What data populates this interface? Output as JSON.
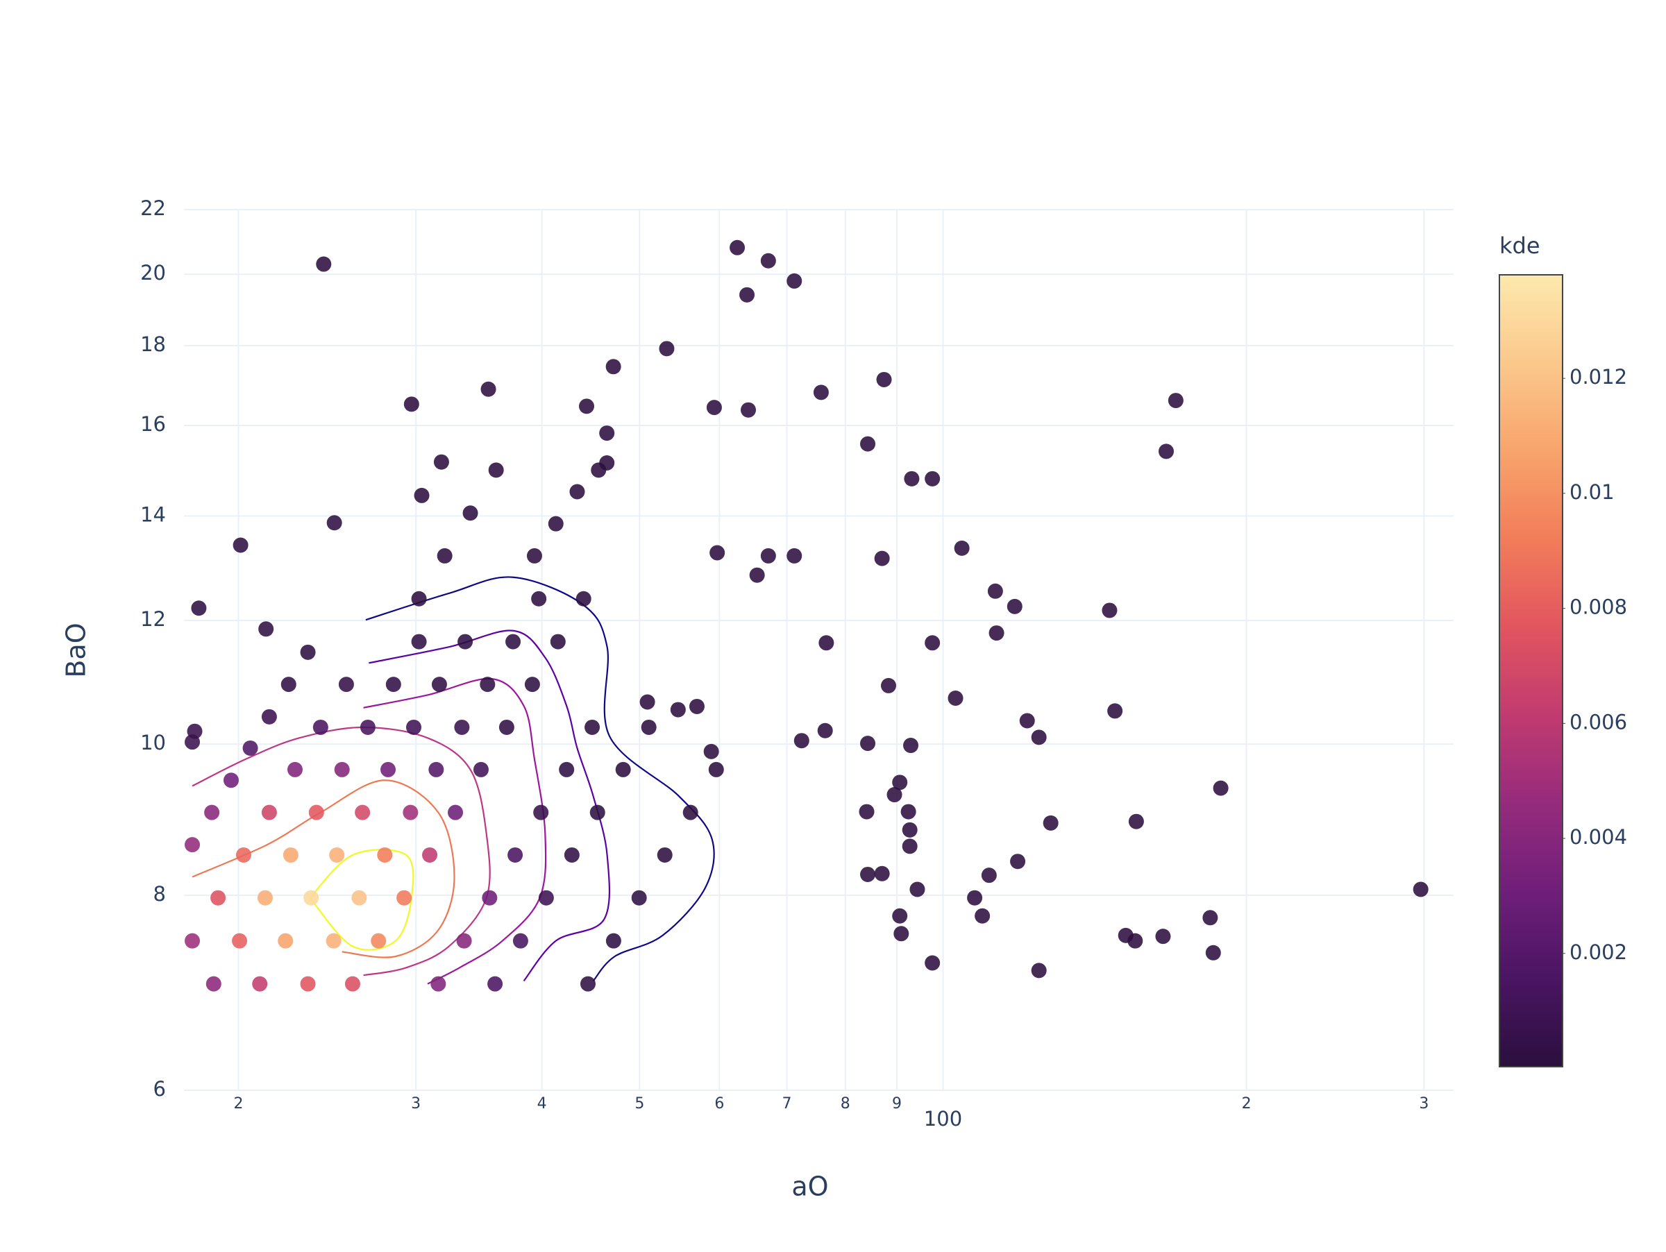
{
  "chart_data": {
    "type": "scatter",
    "x_label": "aO",
    "y_label": "BaO",
    "x_log": true,
    "y_log": true,
    "grid": true,
    "xlim": [
      17.66,
      321
    ],
    "ylim": [
      6,
      22
    ],
    "xticks": [
      {
        "value": 20,
        "label": "2"
      },
      {
        "value": 30,
        "label": "3"
      },
      {
        "value": 40,
        "label": "4"
      },
      {
        "value": 50,
        "label": "5"
      },
      {
        "value": 60,
        "label": "6"
      },
      {
        "value": 70,
        "label": "7"
      },
      {
        "value": 80,
        "label": "8"
      },
      {
        "value": 90,
        "label": "9"
      },
      100,
      {
        "value": 200,
        "label": "2"
      },
      {
        "value": 300,
        "label": "3"
      }
    ],
    "yticks": [
      6,
      8,
      10,
      12,
      14,
      16,
      18,
      20,
      22
    ],
    "colorbar_title": "kde",
    "clim": [
      3e-05,
      0.0138
    ],
    "cticks": [
      0.002,
      0.004,
      0.006,
      0.008,
      0.01,
      0.012
    ],
    "colorscale": [
      "#2b0f3e",
      "#4a1562",
      "#6f1f7a",
      "#962b7c",
      "#c13b70",
      "#e2555f",
      "#f27d5a",
      "#f8a46c",
      "#fbc88c",
      "#fde9ad"
    ],
    "x": [
      18.0,
      19.09,
      20.24,
      21.46,
      22.76,
      24.13,
      25.59,
      18.9,
      20.05,
      21.26,
      22.54,
      23.9,
      25.34,
      26.88,
      28.5,
      30.21,
      21.0,
      22.27,
      23.61,
      25.04,
      26.55,
      28.15,
      29.85,
      31.65,
      33.57,
      23.44,
      24.86,
      26.35,
      27.94,
      29.63,
      31.42,
      33.32,
      35.33,
      37.45,
      39.72,
      25.96,
      27.54,
      29.2,
      30.96,
      32.83,
      34.81,
      36.91,
      39.14,
      41.5,
      44.0,
      31.57,
      33.49,
      35.5,
      37.63,
      39.91,
      42.32,
      44.87,
      35.94,
      38.1,
      40.4,
      42.84,
      45.42,
      48.16,
      51.07,
      44.44,
      47.12,
      49.95,
      52.97,
      56.17,
      59.57,
      18.0,
      18.82,
      19.67,
      20.55,
      21.46,
      22.43,
      23.44,
      30.21,
      32.04,
      33.97,
      36.03,
      39.33,
      41.3,
      43.36,
      45.53,
      24.3,
      62.5,
      67.1,
      71.2,
      63.9,
      170.2,
      166.5,
      297.8,
      188.6,
      146.3,
      148.1,
      155.5,
      104.4,
      112.7,
      117.8,
      113.0,
      97.6,
      97.6,
      93.1,
      87.4,
      84.2,
      75.7,
      87.0,
      102.9,
      121.2,
      124.5,
      127.9,
      118.6,
      111.1,
      107.5,
      109.4,
      124.5,
      151.8,
      155.1,
      165.3,
      184.1,
      185.4,
      97.6,
      90.9,
      90.6,
      94.3,
      92.7,
      92.7,
      92.4,
      90.6,
      89.5,
      92.9,
      88.3,
      84.2,
      84.0,
      84.2,
      87.0,
      76.6,
      76.4,
      72.4,
      71.2,
      67.1,
      65.4,
      59.7,
      59.3,
      64.1,
      53.2,
      47.1,
      44.3,
      35.4,
      29.7,
      31.8,
      30.4,
      24.9,
      20.1,
      18.27,
      21.3,
      18.0,
      18.1,
      46.4,
      46.4,
      54.6,
      57.0,
      58.9,
      50.9
    ],
    "y": [
      7.48,
      7.97,
      8.49,
      9.04,
      9.63,
      10.25,
      10.92,
      7.02,
      7.48,
      7.97,
      8.49,
      9.04,
      9.63,
      10.25,
      10.92,
      11.63,
      7.02,
      7.48,
      7.97,
      8.49,
      9.04,
      9.63,
      10.25,
      10.92,
      11.63,
      7.02,
      7.48,
      7.97,
      8.49,
      9.04,
      9.63,
      10.25,
      10.92,
      11.63,
      12.39,
      7.02,
      7.48,
      7.97,
      8.49,
      9.04,
      9.63,
      10.25,
      10.92,
      11.63,
      12.39,
      7.02,
      7.48,
      7.97,
      8.49,
      9.04,
      9.63,
      10.25,
      7.02,
      7.48,
      7.97,
      8.49,
      9.04,
      9.63,
      10.25,
      7.02,
      7.48,
      7.97,
      8.49,
      9.04,
      9.63,
      8.62,
      9.04,
      9.48,
      9.94,
      10.41,
      10.92,
      11.45,
      12.39,
      13.2,
      14.06,
      14.98,
      13.2,
      13.84,
      14.51,
      14.98,
      20.3,
      20.8,
      20.4,
      19.8,
      19.4,
      16.6,
      15.4,
      8.07,
      9.37,
      12.18,
      10.5,
      8.92,
      13.35,
      12.53,
      12.25,
      11.78,
      11.61,
      14.79,
      14.79,
      17.12,
      15.57,
      16.8,
      13.15,
      10.7,
      10.35,
      10.1,
      8.9,
      8.41,
      8.24,
      7.97,
      7.76,
      7.16,
      7.54,
      7.48,
      7.53,
      7.74,
      7.35,
      7.24,
      7.56,
      7.76,
      8.07,
      8.6,
      8.81,
      9.05,
      9.45,
      9.28,
      9.98,
      10.9,
      10.01,
      9.05,
      8.25,
      8.26,
      11.61,
      10.2,
      10.05,
      13.2,
      13.2,
      12.83,
      13.26,
      16.43,
      16.37,
      17.92,
      17.45,
      16.46,
      16.88,
      16.51,
      15.16,
      14.43,
      13.86,
      13.41,
      12.22,
      11.85,
      10.03,
      10.19,
      15.14,
      15.82,
      10.52,
      10.57,
      9.89,
      10.64
    ],
    "kde": [
      0.0049,
      0.0075,
      0.0084,
      0.0067,
      0.0038,
      0.0016,
      0.0005,
      0.0042,
      0.0081,
      0.0111,
      0.0109,
      0.0077,
      0.0039,
      0.0014,
      0.0004,
      0.0003,
      0.0063,
      0.0107,
      0.013,
      0.0112,
      0.007,
      0.0031,
      0.001,
      0.0004,
      0.0002,
      0.0076,
      0.0113,
      0.012,
      0.0092,
      0.005,
      0.002,
      0.0007,
      0.0003,
      0.0002,
      0.0001,
      0.0073,
      0.0096,
      0.0091,
      0.0061,
      0.003,
      0.0011,
      0.0004,
      0.0002,
      0.0001,
      0.0001,
      0.0037,
      0.004,
      0.003,
      0.0016,
      0.0006,
      0.0002,
      0.0001,
      0.0016,
      0.0014,
      0.0009,
      0.0004,
      0.0002,
      0.0001,
      0.0001,
      0.0003,
      0.0002,
      0.0002,
      0.0001,
      0.0001,
      0.0001,
      0.0045,
      0.0041,
      0.0031,
      0.0018,
      0.0008,
      0.0004,
      0.0002,
      0.0001,
      0.0001,
      0.0001,
      0.0001,
      0.0001,
      0.0001,
      0.0001,
      0.0001,
      0.0001,
      0.0001,
      0.0001,
      0.0001,
      0.0001,
      0.0001,
      0.0001,
      0.0001,
      0.0001,
      0.0001,
      0.0001,
      0.0001,
      0.0001,
      0.0001,
      0.0001,
      0.0001,
      0.0001,
      0.0001,
      0.0001,
      0.0001,
      0.0001,
      0.0001,
      0.0001,
      0.0001,
      0.0001,
      0.0001,
      0.0001,
      0.0001,
      0.0001,
      0.0001,
      0.0001,
      0.0001,
      0.0001,
      0.0001,
      0.0001,
      0.0001,
      0.0001,
      0.0001,
      0.0001,
      0.0001,
      0.0001,
      0.0001,
      0.0001,
      0.0001,
      0.0001,
      0.0001,
      0.0001,
      0.0001,
      0.0001,
      0.0001,
      0.0001,
      0.0001,
      0.0001,
      0.0001,
      0.0001,
      0.0001,
      0.0001,
      0.0001,
      0.0001,
      0.0001,
      0.0001,
      0.0001,
      0.0001,
      0.0001,
      0.0001,
      0.0001,
      0.0001,
      0.0001,
      0.0002,
      0.0002,
      0.0002,
      0.0003,
      0.0008,
      0.0007,
      0.0001,
      0.0001,
      0.0001,
      0.0001,
      0.0001,
      0.0001
    ],
    "contours": [
      {
        "color": "#0d0887",
        "x": [
          26.75,
          32.35,
          37.45,
          43.89,
          46.43,
          46.67,
          54.7,
          59.0,
          58.1,
          52.7,
          47.24,
          44.98
        ],
        "y": [
          12.01,
          12.49,
          12.79,
          12.29,
          11.54,
          10.12,
          9.26,
          8.69,
          8.09,
          7.54,
          7.31,
          7.05
        ]
      },
      {
        "color": "#5c01a6",
        "x": [
          26.94,
          32.35,
          37.45,
          40.3,
          42.32,
          43.36,
          44.98,
          46.43,
          46.1,
          41.3,
          38.38
        ],
        "y": [
          11.27,
          11.54,
          11.82,
          11.36,
          10.58,
          9.94,
          9.26,
          8.49,
          7.72,
          7.48,
          7.05
        ]
      },
      {
        "color": "#9c179e",
        "x": [
          26.61,
          30.81,
          35.67,
          38.38,
          39.33,
          40.3,
          39.81,
          36.55,
          33.15,
          30.81
        ],
        "y": [
          10.55,
          10.75,
          11.01,
          10.58,
          9.78,
          8.76,
          7.97,
          7.48,
          7.19,
          7.02
        ]
      },
      {
        "color": "#bd3786",
        "x": [
          18.0,
          20.34,
          22.98,
          26.61,
          30.81,
          33.97,
          35.24,
          35.24,
          32.35,
          29.34,
          26.61
        ],
        "y": [
          9.4,
          9.78,
          10.09,
          10.25,
          10.09,
          9.63,
          8.76,
          7.97,
          7.42,
          7.19,
          7.11
        ]
      },
      {
        "color": "#ed7953",
        "x": [
          18.0,
          21.36,
          24.13,
          27.94,
          31.57,
          32.75,
          31.57,
          28.63,
          25.34
        ],
        "y": [
          8.22,
          8.62,
          9.04,
          9.48,
          9.04,
          8.22,
          7.6,
          7.31,
          7.36
        ]
      },
      {
        "color": "#f0f921",
        "x": [
          23.55,
          25.96,
          29.34,
          29.7,
          28.63,
          25.96,
          23.55
        ],
        "y": [
          7.97,
          8.49,
          8.49,
          7.97,
          7.48,
          7.42,
          7.97
        ]
      }
    ]
  }
}
